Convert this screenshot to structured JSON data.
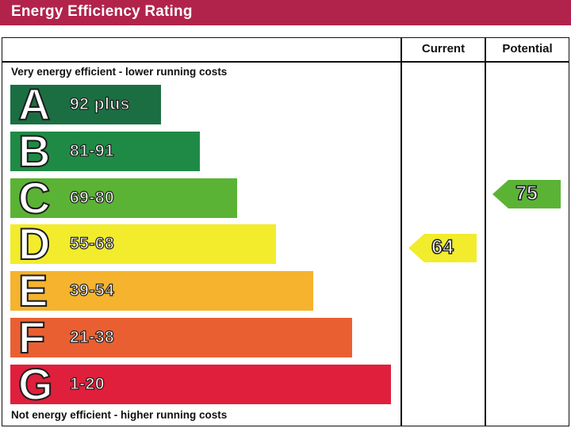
{
  "title": "Energy Efficiency Rating",
  "columns": {
    "current": "Current",
    "potential": "Potential"
  },
  "notes": {
    "top": "Very energy efficient - lower running costs",
    "bottom": "Not energy efficient - higher running costs"
  },
  "chart_data": {
    "type": "bar",
    "title": "Energy Efficiency Rating",
    "bands": [
      {
        "letter": "A",
        "range": "92 plus",
        "color": "#1b6e42"
      },
      {
        "letter": "B",
        "range": "81-91",
        "color": "#1f8a46"
      },
      {
        "letter": "C",
        "range": "69-80",
        "color": "#5bb335"
      },
      {
        "letter": "D",
        "range": "55-68",
        "color": "#f2ec2c"
      },
      {
        "letter": "E",
        "range": "39-54",
        "color": "#f5b32e"
      },
      {
        "letter": "F",
        "range": "21-38",
        "color": "#ea5f32"
      },
      {
        "letter": "G",
        "range": "1-20",
        "color": "#df1f3c"
      }
    ],
    "current": {
      "value": 64,
      "band": "D",
      "color": "#f2ec2c"
    },
    "potential": {
      "value": 75,
      "band": "C",
      "color": "#5bb335"
    }
  }
}
